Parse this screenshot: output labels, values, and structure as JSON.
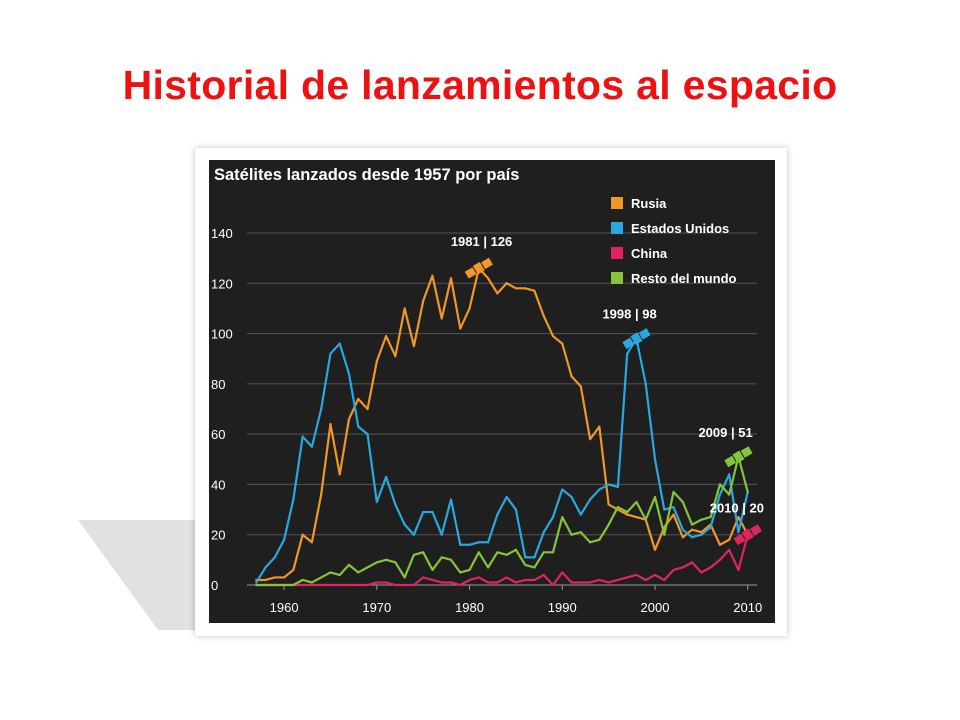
{
  "slide": {
    "title": "Historial de lanzamientos al espacio"
  },
  "colors": {
    "title": "#ee1111",
    "panel": "#1f1f1f",
    "grid": "#555555",
    "text": "#ffffff",
    "russia": "#f0962a",
    "usa": "#2aa8dd",
    "china": "#e0245e",
    "rest": "#86c43a"
  },
  "chart_data": {
    "type": "line",
    "title": "Satélites lanzados desde 1957 por país",
    "xlabel": "",
    "ylabel": "",
    "xlim": [
      1956,
      2011
    ],
    "ylim": [
      0,
      140
    ],
    "x_ticks": [
      1960,
      1970,
      1980,
      1990,
      2000,
      2010
    ],
    "y_ticks": [
      0,
      20,
      40,
      60,
      80,
      100,
      120,
      140
    ],
    "grid": true,
    "legend_position": "top-right",
    "x": [
      1957,
      1958,
      1959,
      1960,
      1961,
      1962,
      1963,
      1964,
      1965,
      1966,
      1967,
      1968,
      1969,
      1970,
      1971,
      1972,
      1973,
      1974,
      1975,
      1976,
      1977,
      1978,
      1979,
      1980,
      1981,
      1982,
      1983,
      1984,
      1985,
      1986,
      1987,
      1988,
      1989,
      1990,
      1991,
      1992,
      1993,
      1994,
      1995,
      1996,
      1997,
      1998,
      1999,
      2000,
      2001,
      2002,
      2003,
      2004,
      2005,
      2006,
      2007,
      2008,
      2009,
      2010
    ],
    "series": [
      {
        "name": "Rusia",
        "color": "#f0962a",
        "values": [
          2,
          2,
          3,
          3,
          6,
          20,
          17,
          36,
          64,
          44,
          66,
          74,
          70,
          89,
          99,
          91,
          110,
          95,
          113,
          123,
          106,
          122,
          102,
          110,
          126,
          122,
          116,
          120,
          118,
          118,
          117,
          107,
          99,
          96,
          83,
          79,
          58,
          63,
          32,
          30,
          28,
          27,
          26,
          14,
          23,
          28,
          19,
          22,
          21,
          24,
          16,
          18,
          27,
          20
        ]
      },
      {
        "name": "Estados Unidos",
        "color": "#2aa8dd",
        "values": [
          1,
          7,
          11,
          18,
          34,
          59,
          55,
          70,
          92,
          96,
          84,
          63,
          60,
          33,
          43,
          32,
          24,
          20,
          29,
          29,
          20,
          34,
          16,
          16,
          17,
          17,
          28,
          35,
          30,
          11,
          11,
          21,
          27,
          38,
          35,
          28,
          34,
          38,
          40,
          39,
          92,
          98,
          80,
          50,
          30,
          31,
          22,
          19,
          20,
          23,
          36,
          44,
          21,
          37
        ]
      },
      {
        "name": "China",
        "color": "#e0245e",
        "values": [
          0,
          0,
          0,
          0,
          0,
          0,
          0,
          0,
          0,
          0,
          0,
          0,
          0,
          1,
          1,
          0,
          0,
          0,
          3,
          2,
          1,
          1,
          0,
          2,
          3,
          1,
          1,
          3,
          1,
          2,
          2,
          4,
          0,
          5,
          1,
          1,
          1,
          2,
          1,
          2,
          3,
          4,
          2,
          4,
          2,
          6,
          7,
          9,
          5,
          7,
          10,
          14,
          6,
          20
        ]
      },
      {
        "name": "Resto del mundo",
        "color": "#86c43a",
        "values": [
          0,
          0,
          0,
          0,
          0,
          2,
          1,
          3,
          5,
          4,
          8,
          5,
          7,
          9,
          10,
          9,
          3,
          12,
          13,
          6,
          11,
          10,
          5,
          6,
          13,
          7,
          13,
          12,
          14,
          8,
          7,
          13,
          13,
          27,
          20,
          21,
          17,
          18,
          24,
          31,
          29,
          33,
          26,
          35,
          20,
          37,
          33,
          24,
          26,
          27,
          40,
          36,
          51,
          37
        ]
      }
    ],
    "annotations": [
      {
        "label": "1981 | 126",
        "series": "Rusia",
        "x": 1981,
        "y": 126
      },
      {
        "label": "1998 | 98",
        "series": "Estados Unidos",
        "x": 1998,
        "y": 98
      },
      {
        "label": "2009 | 51",
        "series": "Resto del mundo",
        "x": 2009,
        "y": 51
      },
      {
        "label": "2010 | 20",
        "series": "China",
        "x": 2010,
        "y": 20
      }
    ]
  }
}
